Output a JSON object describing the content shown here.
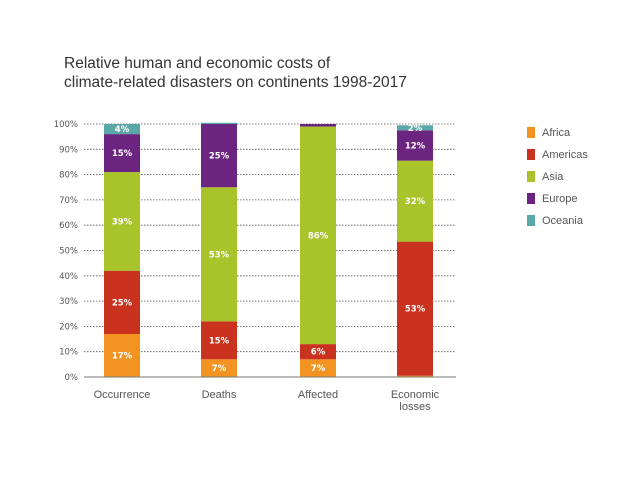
{
  "title_lines": [
    "Relative  human and economic costs of",
    "climate-related disasters on continents 1998-2017"
  ],
  "colors": {
    "Africa": "#f39422",
    "Americas": "#c8321e",
    "Asia": "#a8c42a",
    "Europe": "#6b2480",
    "Oceania": "#5aa7a7"
  },
  "chart_data": {
    "type": "bar",
    "stacked": true,
    "title": "Relative  human and economic costs of climate-related disasters on continents 1998-2017",
    "categories": [
      "Occurrence",
      "Deaths",
      "Affected",
      "Economic losses"
    ],
    "category_label_lines": [
      [
        "Occurrence"
      ],
      [
        "Deaths"
      ],
      [
        "Affected"
      ],
      [
        "Economic",
        "losses"
      ]
    ],
    "y_ticks": [
      "0%",
      "10%",
      "20%",
      "30%",
      "40%",
      "50%",
      "60%",
      "70%",
      "80%",
      "90%",
      "100%"
    ],
    "ylim": [
      0,
      100
    ],
    "grid": true,
    "legend_position": "right",
    "series": [
      {
        "name": "Africa",
        "values": [
          17,
          7,
          7,
          0.5
        ],
        "labels": [
          "17%",
          "7%",
          "7%",
          ""
        ]
      },
      {
        "name": "Americas",
        "values": [
          25,
          15,
          6,
          53
        ],
        "labels": [
          "25%",
          "15%",
          "6%",
          "53%"
        ]
      },
      {
        "name": "Asia",
        "values": [
          39,
          53,
          86,
          32
        ],
        "labels": [
          "39%",
          "53%",
          "86%",
          "32%"
        ]
      },
      {
        "name": "Europe",
        "values": [
          15,
          25,
          1,
          12
        ],
        "labels": [
          "15%",
          "25%",
          "",
          "12%"
        ]
      },
      {
        "name": "Oceania",
        "values": [
          4,
          0.5,
          0,
          2
        ],
        "labels": [
          "4%",
          "",
          "",
          "2%"
        ]
      }
    ]
  }
}
